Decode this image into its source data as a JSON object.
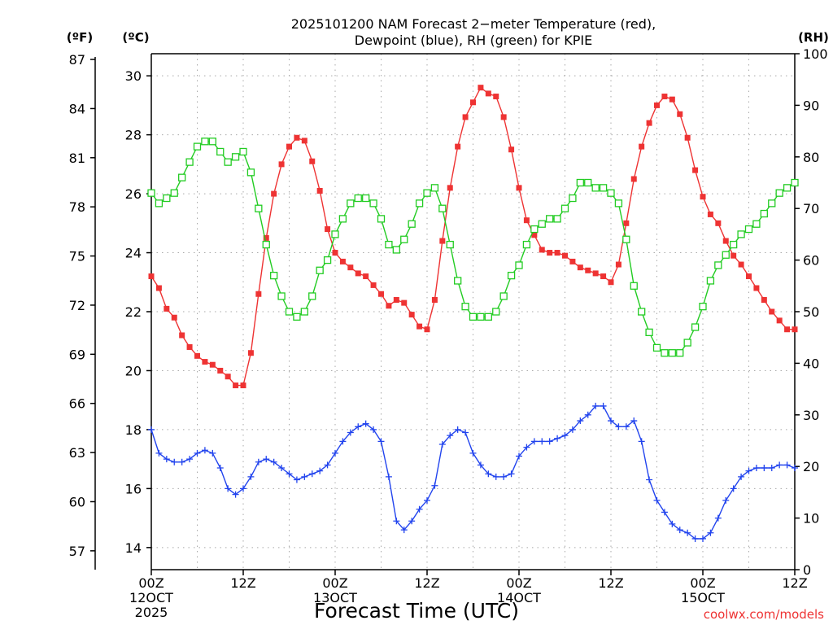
{
  "chart_data": {
    "type": "line",
    "title_line1": "2025101200 NAM Forecast 2−meter Temperature (red),",
    "title_line2": "Dewpoint (blue), RH (green) for KPIE",
    "xlabel": "Forecast Time (UTC)",
    "credit": "coolwx.com/models",
    "unit_f": "(ºF)",
    "unit_c": "(ºC)",
    "unit_rh": "(RH)",
    "x_unit": "forecast hour",
    "xlim": [
      0,
      84
    ],
    "ylim_c": [
      13.25,
      30.75
    ],
    "ylim_rh": [
      0,
      100
    ],
    "ylim_f": [
      55.85,
      87.35
    ],
    "ticks_c": [
      "14",
      "16",
      "18",
      "20",
      "22",
      "24",
      "26",
      "28",
      "30"
    ],
    "ticks_f": [
      "57",
      "60",
      "63",
      "66",
      "69",
      "72",
      "75",
      "78",
      "81",
      "84",
      "87"
    ],
    "ticks_rh": [
      "0",
      "10",
      "20",
      "30",
      "40",
      "50",
      "60",
      "70",
      "80",
      "90",
      "100"
    ],
    "x_ticks": [
      {
        "hour": 0,
        "lines": [
          "00Z",
          "12OCT",
          "2025"
        ]
      },
      {
        "hour": 12,
        "lines": [
          "12Z"
        ]
      },
      {
        "hour": 24,
        "lines": [
          "00Z",
          "13OCT"
        ]
      },
      {
        "hour": 36,
        "lines": [
          "12Z"
        ]
      },
      {
        "hour": 48,
        "lines": [
          "00Z",
          "14OCT"
        ]
      },
      {
        "hour": 60,
        "lines": [
          "12Z"
        ]
      },
      {
        "hour": 72,
        "lines": [
          "00Z",
          "15OCT"
        ]
      },
      {
        "hour": 84,
        "lines": [
          "12Z"
        ]
      }
    ],
    "hours": [
      0,
      1,
      2,
      3,
      4,
      5,
      6,
      7,
      8,
      9,
      10,
      11,
      12,
      13,
      14,
      15,
      16,
      17,
      18,
      19,
      20,
      21,
      22,
      23,
      24,
      25,
      26,
      27,
      28,
      29,
      30,
      31,
      32,
      33,
      34,
      35,
      36,
      37,
      38,
      39,
      40,
      41,
      42,
      43,
      44,
      45,
      46,
      47,
      48,
      49,
      50,
      51,
      52,
      53,
      54,
      55,
      56,
      57,
      58,
      59,
      60,
      61,
      62,
      63,
      64,
      65,
      66,
      67,
      68,
      69,
      70,
      71,
      72,
      73,
      74,
      75,
      76,
      77,
      78,
      79,
      80,
      81,
      82,
      83,
      84
    ],
    "series": [
      {
        "name": "Temperature",
        "unit": "C",
        "color": "#ee3333",
        "marker": "filled-square",
        "values": [
          23.2,
          22.8,
          22.1,
          21.8,
          21.2,
          20.8,
          20.5,
          20.3,
          20.2,
          20.0,
          19.8,
          19.5,
          19.5,
          20.6,
          22.6,
          24.5,
          26.0,
          27.0,
          27.6,
          27.9,
          27.8,
          27.1,
          26.1,
          24.8,
          24.0,
          23.7,
          23.5,
          23.3,
          23.2,
          22.9,
          22.6,
          22.2,
          22.4,
          22.3,
          21.9,
          21.5,
          21.4,
          22.4,
          24.4,
          26.2,
          27.6,
          28.6,
          29.1,
          29.6,
          29.4,
          29.3,
          28.6,
          27.5,
          26.2,
          25.1,
          24.6,
          24.1,
          24.0,
          24.0,
          23.9,
          23.7,
          23.5,
          23.4,
          23.3,
          23.2,
          23.0,
          23.6,
          25.0,
          26.5,
          27.6,
          28.4,
          29.0,
          29.3,
          29.2,
          28.7,
          27.9,
          26.8,
          25.9,
          25.3,
          25.0,
          24.4,
          23.9,
          23.6,
          23.2,
          22.8,
          22.4,
          22.0,
          21.7,
          21.4,
          21.4
        ]
      },
      {
        "name": "Dewpoint",
        "unit": "C",
        "color": "#2244ee",
        "marker": "plus",
        "values": [
          18.0,
          17.2,
          17.0,
          16.9,
          16.9,
          17.0,
          17.2,
          17.3,
          17.2,
          16.7,
          16.0,
          15.8,
          16.0,
          16.4,
          16.9,
          17.0,
          16.9,
          16.7,
          16.5,
          16.3,
          16.4,
          16.5,
          16.6,
          16.8,
          17.2,
          17.6,
          17.9,
          18.1,
          18.2,
          18.0,
          17.6,
          16.4,
          14.9,
          14.6,
          14.9,
          15.3,
          15.6,
          16.1,
          17.5,
          17.8,
          18.0,
          17.9,
          17.2,
          16.8,
          16.5,
          16.4,
          16.4,
          16.5,
          17.1,
          17.4,
          17.6,
          17.6,
          17.6,
          17.7,
          17.8,
          18.0,
          18.3,
          18.5,
          18.8,
          18.8,
          18.3,
          18.1,
          18.1,
          18.3,
          17.6,
          16.3,
          15.6,
          15.2,
          14.8,
          14.6,
          14.5,
          14.3,
          14.3,
          14.5,
          15.0,
          15.6,
          16.0,
          16.4,
          16.6,
          16.7,
          16.7,
          16.7,
          16.8,
          16.8,
          16.7
        ]
      },
      {
        "name": "RH",
        "unit": "%",
        "color": "#22cc22",
        "marker": "open-square",
        "values": [
          73,
          71,
          72,
          73,
          76,
          79,
          82,
          83,
          83,
          81,
          79,
          80,
          81,
          77,
          70,
          63,
          57,
          53,
          50,
          49,
          50,
          53,
          58,
          60,
          65,
          68,
          71,
          72,
          72,
          71,
          68,
          63,
          62,
          64,
          67,
          71,
          73,
          74,
          70,
          63,
          56,
          51,
          49,
          49,
          49,
          50,
          53,
          57,
          59,
          63,
          66,
          67,
          68,
          68,
          70,
          72,
          75,
          75,
          74,
          74,
          73,
          71,
          64,
          55,
          50,
          46,
          43,
          42,
          42,
          42,
          44,
          47,
          51,
          56,
          59,
          61,
          63,
          65,
          66,
          67,
          69,
          71,
          73,
          74,
          75
        ]
      }
    ]
  }
}
